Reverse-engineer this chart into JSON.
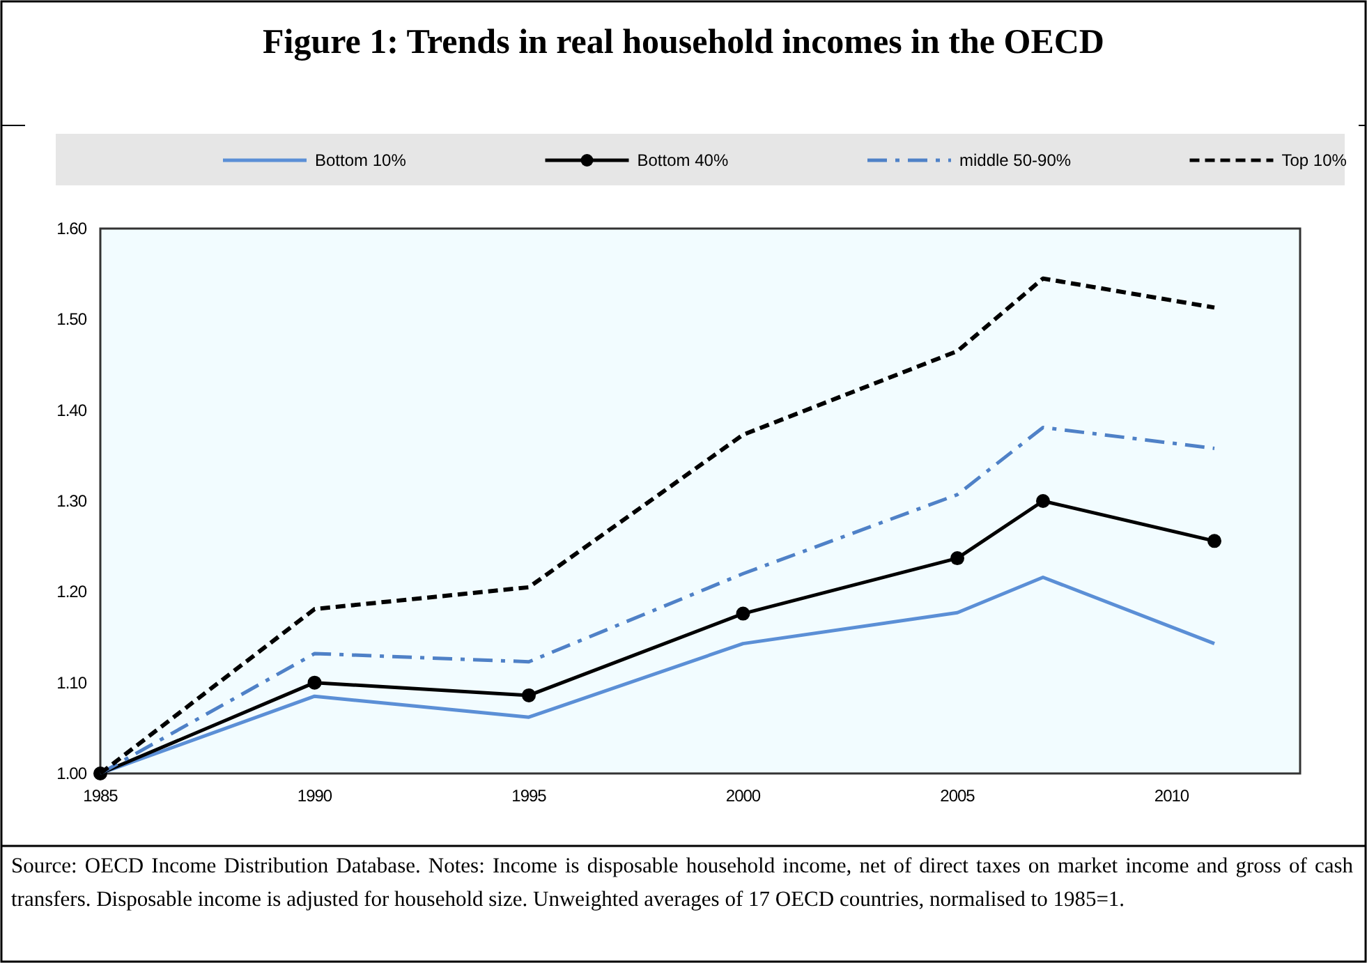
{
  "chart_data": {
    "type": "line",
    "title": "Figure 1: Trends in real household incomes in the OECD",
    "x": [
      1985,
      1990,
      1995,
      2000,
      2005,
      2007,
      2011
    ],
    "xlim": [
      1985,
      2013
    ],
    "xticks": [
      1985,
      1990,
      1995,
      2000,
      2005,
      2010
    ],
    "ylim": [
      1.0,
      1.6
    ],
    "yticks": [
      {
        "value": 1.0,
        "label": "1.00"
      },
      {
        "value": 1.1,
        "label": "1.10"
      },
      {
        "value": 1.2,
        "label": "1.20"
      },
      {
        "value": 1.3,
        "label": "1.30"
      },
      {
        "value": 1.4,
        "label": "1.40"
      },
      {
        "value": 1.5,
        "label": "1.50"
      },
      {
        "value": 1.6,
        "label": "1.60"
      }
    ],
    "grid": false,
    "legend": "top",
    "series": [
      {
        "name": "Bottom 10%",
        "color": "#5b8fd6",
        "line_style": "solid",
        "marker": "none",
        "values": [
          1.0,
          1.085,
          1.062,
          1.143,
          1.177,
          1.216,
          1.143
        ]
      },
      {
        "name": "Bottom 40%",
        "color": "#000000",
        "line_style": "solid",
        "marker": "circle",
        "values": [
          1.0,
          1.1,
          1.086,
          1.176,
          1.237,
          1.3,
          1.256
        ]
      },
      {
        "name": "middle 50-90%",
        "color": "#4f81c7",
        "line_style": "dashdot",
        "marker": "none",
        "values": [
          1.0,
          1.132,
          1.123,
          1.22,
          1.307,
          1.381,
          1.358
        ]
      },
      {
        "name": "Top 10%",
        "color": "#000000",
        "line_style": "dashed",
        "marker": "none",
        "values": [
          1.0,
          1.181,
          1.205,
          1.373,
          1.465,
          1.545,
          1.513
        ]
      }
    ],
    "annotations": [
      "Source: OECD Income Distribution Database. Notes: Income is disposable household income, net of direct taxes on market income and gross of cash transfers. Disposable income is adjusted for household size. Unweighted averages of 17 OECD countries, normalised to 1985=1."
    ]
  }
}
